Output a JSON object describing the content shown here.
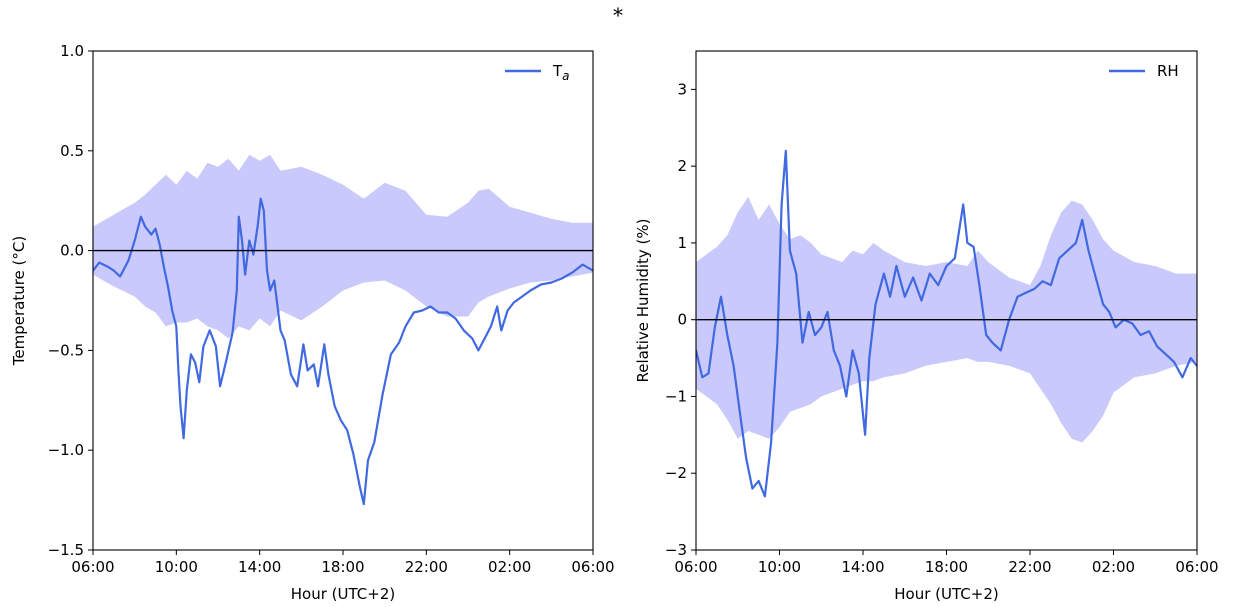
{
  "figure": {
    "marker": "*"
  },
  "chart_data": [
    {
      "type": "line",
      "xlabel": "Hour (UTC+2)",
      "ylabel": "Temperature (°C)",
      "xlim": [
        6,
        30
      ],
      "ylim": [
        -1.5,
        1.0
      ],
      "x_ticks": [
        {
          "value": 6,
          "label": "06:00"
        },
        {
          "value": 10,
          "label": "10:00"
        },
        {
          "value": 14,
          "label": "14:00"
        },
        {
          "value": 18,
          "label": "18:00"
        },
        {
          "value": 22,
          "label": "22:00"
        },
        {
          "value": 26,
          "label": "02:00"
        },
        {
          "value": 30,
          "label": "06:00"
        }
      ],
      "y_ticks": [
        {
          "value": 1.0,
          "label": "1.0"
        },
        {
          "value": 0.5,
          "label": "0.5"
        },
        {
          "value": 0.0,
          "label": "0.0"
        },
        {
          "value": -0.5,
          "label": "−0.5"
        },
        {
          "value": -1.0,
          "label": "−1.0"
        },
        {
          "value": -1.5,
          "label": "−1.5"
        }
      ],
      "zero_line": 0,
      "legend": {
        "position": "top-right",
        "label_main": "T",
        "label_sub": "a"
      },
      "line_color": "#4169e1",
      "band_color": "#c9c9fb",
      "band": {
        "x": [
          6,
          7,
          8,
          8.5,
          9,
          9.5,
          10,
          10.5,
          11,
          11.5,
          12,
          12.5,
          13,
          13.5,
          14,
          14.5,
          15,
          16,
          17,
          18,
          19,
          20,
          21,
          22,
          23,
          24,
          24.5,
          25,
          26,
          27,
          28,
          29,
          30
        ],
        "upper": [
          0.12,
          0.18,
          0.24,
          0.28,
          0.33,
          0.38,
          0.33,
          0.4,
          0.36,
          0.44,
          0.42,
          0.46,
          0.4,
          0.48,
          0.45,
          0.48,
          0.4,
          0.42,
          0.38,
          0.33,
          0.26,
          0.34,
          0.3,
          0.18,
          0.17,
          0.24,
          0.3,
          0.31,
          0.22,
          0.19,
          0.16,
          0.14,
          0.14
        ],
        "lower": [
          -0.12,
          -0.18,
          -0.23,
          -0.28,
          -0.31,
          -0.38,
          -0.36,
          -0.36,
          -0.34,
          -0.38,
          -0.4,
          -0.44,
          -0.38,
          -0.4,
          -0.34,
          -0.38,
          -0.3,
          -0.35,
          -0.28,
          -0.2,
          -0.16,
          -0.15,
          -0.2,
          -0.28,
          -0.33,
          -0.33,
          -0.26,
          -0.23,
          -0.19,
          -0.16,
          -0.15,
          -0.13,
          -0.11
        ]
      },
      "series": [
        {
          "name": "T_a",
          "x": [
            6,
            6.3,
            6.7,
            7,
            7.3,
            7.7,
            8,
            8.3,
            8.5,
            8.8,
            9,
            9.2,
            9.4,
            9.6,
            9.8,
            10,
            10.1,
            10.2,
            10.35,
            10.5,
            10.7,
            10.9,
            11.1,
            11.3,
            11.6,
            11.9,
            12.1,
            12.4,
            12.7,
            12.9,
            13,
            13.15,
            13.3,
            13.5,
            13.7,
            13.9,
            14.05,
            14.2,
            14.35,
            14.5,
            14.7,
            15,
            15.2,
            15.5,
            15.8,
            16.1,
            16.3,
            16.6,
            16.8,
            17.1,
            17.3,
            17.6,
            17.9,
            18.2,
            18.5,
            18.8,
            19.0,
            19.2,
            19.5,
            19.9,
            20.3,
            20.7,
            21,
            21.4,
            21.8,
            22.2,
            22.6,
            23,
            23.4,
            23.8,
            24.2,
            24.5,
            24.8,
            25.1,
            25.4,
            25.6,
            25.9,
            26.2,
            26.6,
            27,
            27.5,
            28,
            28.5,
            29,
            29.5,
            30
          ],
          "y": [
            -0.1,
            -0.06,
            -0.08,
            -0.1,
            -0.13,
            -0.05,
            0.05,
            0.17,
            0.12,
            0.08,
            0.11,
            0.03,
            -0.08,
            -0.18,
            -0.3,
            -0.38,
            -0.6,
            -0.78,
            -0.94,
            -0.7,
            -0.52,
            -0.56,
            -0.66,
            -0.48,
            -0.4,
            -0.48,
            -0.68,
            -0.55,
            -0.41,
            -0.2,
            0.17,
            0.05,
            -0.12,
            0.05,
            -0.02,
            0.12,
            0.26,
            0.2,
            -0.1,
            -0.2,
            -0.15,
            -0.4,
            -0.45,
            -0.62,
            -0.68,
            -0.47,
            -0.6,
            -0.57,
            -0.68,
            -0.47,
            -0.62,
            -0.78,
            -0.85,
            -0.9,
            -1.02,
            -1.18,
            -1.27,
            -1.05,
            -0.96,
            -0.72,
            -0.52,
            -0.46,
            -0.38,
            -0.31,
            -0.3,
            -0.28,
            -0.31,
            -0.31,
            -0.34,
            -0.4,
            -0.44,
            -0.5,
            -0.44,
            -0.38,
            -0.28,
            -0.4,
            -0.3,
            -0.26,
            -0.23,
            -0.2,
            -0.17,
            -0.16,
            -0.14,
            -0.11,
            -0.07,
            -0.1
          ]
        }
      ]
    },
    {
      "type": "line",
      "xlabel": "Hour (UTC+2)",
      "ylabel": "Relative Humidity (%)",
      "xlim": [
        6,
        30
      ],
      "ylim": [
        -3,
        3.5
      ],
      "x_ticks": [
        {
          "value": 6,
          "label": "06:00"
        },
        {
          "value": 10,
          "label": "10:00"
        },
        {
          "value": 14,
          "label": "14:00"
        },
        {
          "value": 18,
          "label": "18:00"
        },
        {
          "value": 22,
          "label": "22:00"
        },
        {
          "value": 26,
          "label": "02:00"
        },
        {
          "value": 30,
          "label": "06:00"
        }
      ],
      "y_ticks": [
        {
          "value": 3,
          "label": "3"
        },
        {
          "value": 2,
          "label": "2"
        },
        {
          "value": 1,
          "label": "1"
        },
        {
          "value": 0,
          "label": "0"
        },
        {
          "value": -1,
          "label": "−1"
        },
        {
          "value": -2,
          "label": "−2"
        },
        {
          "value": -3,
          "label": "−3"
        }
      ],
      "zero_line": 0,
      "legend": {
        "position": "top-right",
        "label_main": "RH",
        "label_sub": ""
      },
      "line_color": "#4169e1",
      "band_color": "#c9c9fb",
      "band": {
        "x": [
          6,
          7,
          7.5,
          8,
          8.5,
          9,
          9.5,
          10,
          10.5,
          11,
          11.5,
          12,
          12.5,
          13,
          13.5,
          14,
          14.5,
          15,
          16,
          17,
          18,
          19,
          19.5,
          20,
          21,
          22,
          22.5,
          23,
          23.5,
          24,
          24.5,
          25,
          25.5,
          26,
          27,
          28,
          29,
          30
        ],
        "upper": [
          0.75,
          0.95,
          1.1,
          1.4,
          1.6,
          1.3,
          1.5,
          1.25,
          1.05,
          1.1,
          1.0,
          0.85,
          0.8,
          0.75,
          0.9,
          0.85,
          1.0,
          0.9,
          0.75,
          0.7,
          0.75,
          0.7,
          0.9,
          0.75,
          0.55,
          0.45,
          0.7,
          1.1,
          1.4,
          1.55,
          1.5,
          1.3,
          1.05,
          0.9,
          0.75,
          0.7,
          0.6,
          0.6
        ],
        "lower": [
          -0.9,
          -1.1,
          -1.3,
          -1.55,
          -1.45,
          -1.5,
          -1.55,
          -1.4,
          -1.2,
          -1.15,
          -1.1,
          -1.0,
          -0.95,
          -0.9,
          -0.85,
          -0.8,
          -0.8,
          -0.75,
          -0.7,
          -0.6,
          -0.55,
          -0.5,
          -0.55,
          -0.55,
          -0.6,
          -0.7,
          -0.9,
          -1.1,
          -1.35,
          -1.55,
          -1.6,
          -1.45,
          -1.25,
          -0.95,
          -0.75,
          -0.7,
          -0.6,
          -0.55
        ]
      },
      "series": [
        {
          "name": "RH",
          "x": [
            6,
            6.3,
            6.6,
            6.9,
            7.2,
            7.5,
            7.8,
            8.1,
            8.4,
            8.7,
            9.0,
            9.3,
            9.6,
            9.9,
            10.1,
            10.3,
            10.5,
            10.8,
            11.1,
            11.4,
            11.7,
            12.0,
            12.3,
            12.6,
            12.9,
            13.2,
            13.5,
            13.8,
            14.1,
            14.3,
            14.6,
            15.0,
            15.3,
            15.6,
            16.0,
            16.4,
            16.8,
            17.2,
            17.6,
            18.0,
            18.4,
            18.8,
            19.0,
            19.3,
            19.6,
            19.9,
            20.2,
            20.6,
            21.0,
            21.4,
            21.8,
            22.2,
            22.6,
            23.0,
            23.4,
            23.8,
            24.2,
            24.5,
            24.8,
            25.2,
            25.5,
            25.8,
            26.1,
            26.5,
            26.9,
            27.3,
            27.7,
            28.1,
            28.5,
            28.9,
            29.3,
            29.7,
            30
          ],
          "y": [
            -0.4,
            -0.75,
            -0.7,
            -0.1,
            0.3,
            -0.2,
            -0.6,
            -1.2,
            -1.8,
            -2.2,
            -2.1,
            -2.3,
            -1.6,
            -0.3,
            1.5,
            2.2,
            0.9,
            0.6,
            -0.3,
            0.1,
            -0.2,
            -0.1,
            0.1,
            -0.4,
            -0.6,
            -1.0,
            -0.4,
            -0.7,
            -1.5,
            -0.5,
            0.2,
            0.6,
            0.3,
            0.7,
            0.3,
            0.55,
            0.25,
            0.6,
            0.45,
            0.7,
            0.8,
            1.5,
            1.0,
            0.95,
            0.4,
            -0.2,
            -0.3,
            -0.4,
            0.0,
            0.3,
            0.35,
            0.4,
            0.5,
            0.45,
            0.8,
            0.9,
            1.0,
            1.3,
            0.9,
            0.5,
            0.2,
            0.1,
            -0.1,
            0.0,
            -0.05,
            -0.2,
            -0.15,
            -0.35,
            -0.45,
            -0.55,
            -0.75,
            -0.5,
            -0.6
          ]
        }
      ]
    }
  ]
}
